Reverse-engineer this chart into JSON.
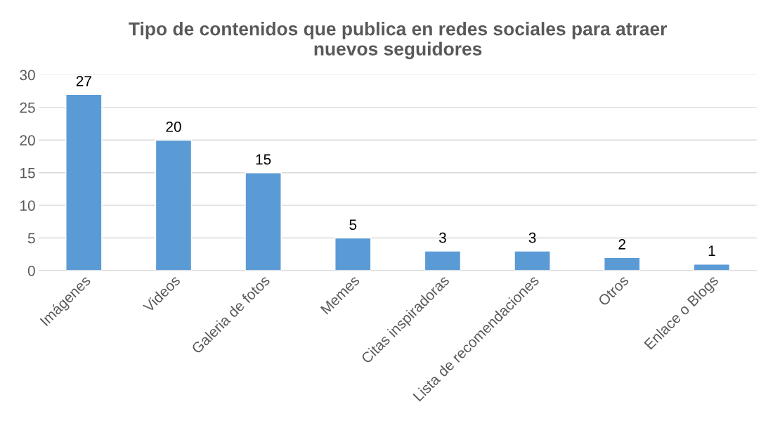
{
  "chart_data": {
    "type": "bar",
    "title": "Tipo de contenidos que publica en redes sociales para atraer\nnuevos seguidores",
    "categories": [
      "Imágenes",
      "Videos",
      "Galeria de fotos",
      "Memes",
      "Citas inspiradoras",
      "Lista de recomendaciones",
      "Otros",
      "Enlace o Blogs"
    ],
    "values": [
      27,
      20,
      15,
      5,
      3,
      3,
      2,
      1
    ],
    "color": "#5b9bd5",
    "ylim": [
      0,
      30
    ],
    "yticks": [
      0,
      5,
      10,
      15,
      20,
      25,
      30
    ],
    "grid": "y",
    "data_labels": true,
    "legend": false
  }
}
